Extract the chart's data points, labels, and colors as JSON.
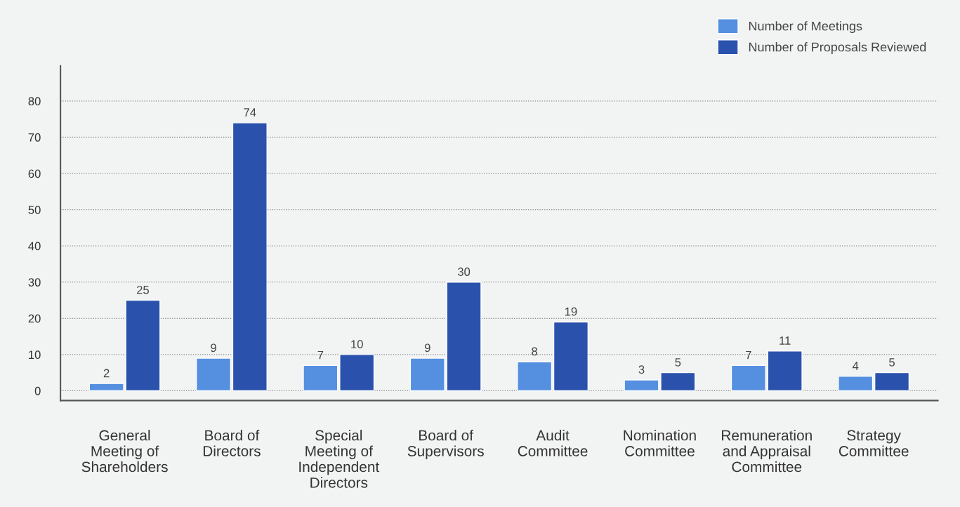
{
  "chart_data": {
    "type": "bar",
    "categories": [
      "General\nMeeting of\nShareholders",
      "Board of\nDirectors",
      "Special\nMeeting of\nIndependent\nDirectors",
      "Board of\nSupervisors",
      "Audit\nCommittee",
      "Nomination\nCommittee",
      "Remuneration\nand Appraisal\nCommittee",
      "Strategy\nCommittee"
    ],
    "series": [
      {
        "name": "Number of Meetings",
        "color": "#5590e0",
        "values": [
          2,
          9,
          7,
          9,
          8,
          3,
          7,
          4
        ]
      },
      {
        "name": "Number of Proposals Reviewed",
        "color": "#2a52ad",
        "values": [
          25,
          74,
          10,
          30,
          19,
          5,
          11,
          5
        ]
      }
    ],
    "ylim": [
      -2.7,
      89.7
    ],
    "yticks": [
      0,
      10,
      20,
      30,
      40,
      50,
      60,
      70,
      80
    ],
    "grid": "y",
    "legend": "top right",
    "data_labels": true
  }
}
